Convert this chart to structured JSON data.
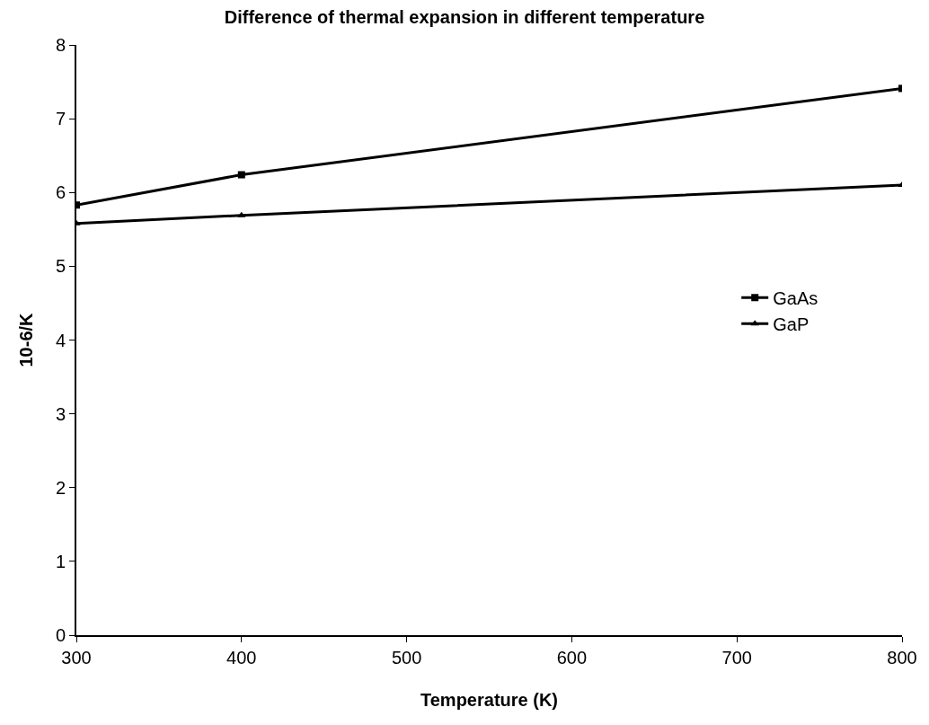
{
  "chart_data": {
    "type": "line",
    "title": "Difference of thermal expansion in different temperature",
    "xlabel": "Temperature (K)",
    "ylabel": "10-6/K",
    "x": [
      300,
      400,
      800
    ],
    "series": [
      {
        "name": "GaAs",
        "color": "#000000",
        "marker": "square",
        "values": [
          5.83,
          6.24,
          7.41
        ]
      },
      {
        "name": "GaP",
        "color": "#000000",
        "marker": "triangle",
        "values": [
          5.58,
          5.69,
          6.1
        ]
      }
    ],
    "xlim": [
      300,
      800
    ],
    "xticks": [
      300,
      400,
      500,
      600,
      700,
      800
    ],
    "ylim": [
      0,
      8
    ],
    "yticks": [
      0,
      1,
      2,
      3,
      4,
      5,
      6,
      7,
      8
    ],
    "legend": "right",
    "line_style": "solid"
  }
}
